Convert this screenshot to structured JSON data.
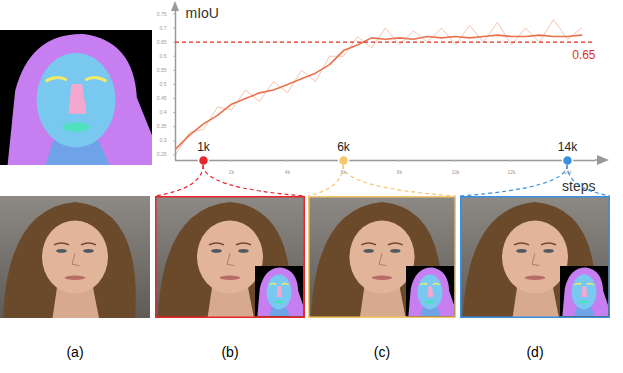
{
  "chart_data": {
    "type": "line",
    "xlabel": "steps",
    "ylabel": "mIoU",
    "x": [
      0,
      500,
      1000,
      1500,
      2000,
      2500,
      3000,
      3500,
      4000,
      4500,
      5000,
      5500,
      6000,
      6500,
      7000,
      7500,
      8000,
      8500,
      9000,
      9500,
      10000,
      10500,
      11000,
      11500,
      12000,
      12500,
      13000,
      13500,
      14000,
      14500
    ],
    "series": [
      {
        "color": "#f7c4ae",
        "values": [
          0.25,
          0.33,
          0.34,
          0.42,
          0.41,
          0.48,
          0.44,
          0.51,
          0.47,
          0.55,
          0.51,
          0.6,
          0.6,
          0.67,
          0.63,
          0.7,
          0.64,
          0.69,
          0.65,
          0.7,
          0.64,
          0.71,
          0.65,
          0.72,
          0.64,
          0.7,
          0.65,
          0.73,
          0.66,
          0.7
        ]
      },
      {
        "color": "#e9724c",
        "values": [
          0.27,
          0.32,
          0.36,
          0.39,
          0.43,
          0.45,
          0.47,
          0.48,
          0.5,
          0.52,
          0.54,
          0.57,
          0.62,
          0.64,
          0.665,
          0.66,
          0.665,
          0.66,
          0.67,
          0.665,
          0.67,
          0.665,
          0.67,
          0.675,
          0.67,
          0.67,
          0.675,
          0.67,
          0.67,
          0.675
        ]
      }
    ],
    "xlim": [
      0,
      15000
    ],
    "ylim": [
      0.23,
      0.78
    ],
    "xticks": [
      {
        "value": 2000,
        "label": "2k"
      },
      {
        "value": 4000,
        "label": "4k"
      },
      {
        "value": 6000,
        "label": "6k"
      },
      {
        "value": 8000,
        "label": "8k"
      },
      {
        "value": 10000,
        "label": "10k"
      },
      {
        "value": 12000,
        "label": "12k"
      },
      {
        "value": 14000,
        "label": "14k"
      }
    ],
    "yticks": [
      0.25,
      0.3,
      0.35,
      0.4,
      0.45,
      0.5,
      0.55,
      0.6,
      0.65,
      0.7,
      0.75
    ],
    "grid": false,
    "annotations": [
      {
        "type": "hline",
        "value": 0.65,
        "label": "0.65",
        "color": "#e0301e"
      }
    ],
    "markers": [
      {
        "x": 1000,
        "label": "1k",
        "color": "#e8262b"
      },
      {
        "x": 6000,
        "label": "6k",
        "color": "#f5c76a"
      },
      {
        "x": 14000,
        "label": "14k",
        "color": "#3b8fe0"
      }
    ],
    "panel_labels": [
      "(a)",
      "(b)",
      "(c)",
      "(d)"
    ]
  }
}
